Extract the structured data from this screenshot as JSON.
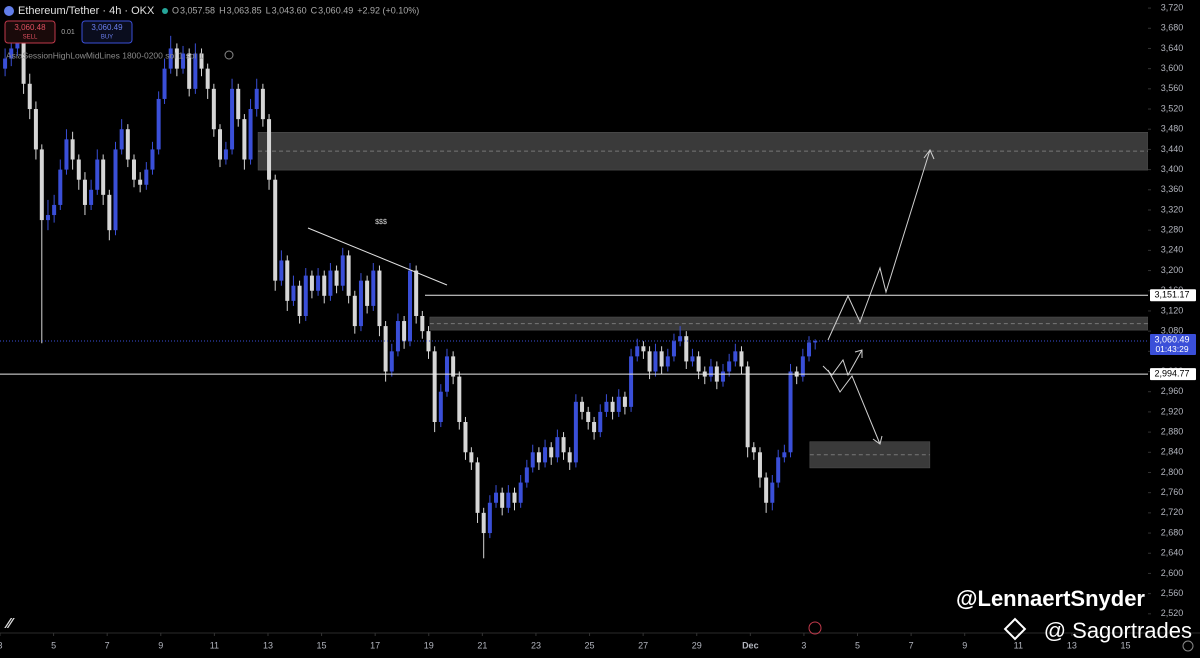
{
  "header": {
    "symbol": "Ethereum/Tether · 4h · OKX",
    "ohlc": [
      {
        "label": "O",
        "value": "3,057.58"
      },
      {
        "label": "H",
        "value": "3,063.85"
      },
      {
        "label": "L",
        "value": "3,043.60"
      },
      {
        "label": "C",
        "value": "3,060.49"
      }
    ],
    "change": "+2.92 (+0.10%)",
    "sell_price": "3,060.48",
    "sell_label": "SELL",
    "quantity": "0.01",
    "buy_price": "3,060.49",
    "buy_label": "BUY",
    "indicator": "AsiaSessionHighLowMidLines 1800-0200 sol 1 sol 1"
  },
  "annotation": "$$$",
  "watermarks": [
    "@LennaertSnyder",
    "@ Sagortrades"
  ],
  "chart_data": {
    "type": "candlestick",
    "title": "Ethereum/Tether · 4h · OKX",
    "up_color": "#3a4fd8",
    "down_color": "#d6d6d6",
    "xlim": [
      0,
      42.84
    ],
    "ylim": [
      2482,
      3736
    ],
    "grid": false,
    "xticks": [
      {
        "value": 0,
        "label": "3"
      },
      {
        "value": 2,
        "label": "5"
      },
      {
        "value": 4,
        "label": "7"
      },
      {
        "value": 6,
        "label": "9"
      },
      {
        "value": 8,
        "label": "11"
      },
      {
        "value": 10,
        "label": "13"
      },
      {
        "value": 12,
        "label": "15"
      },
      {
        "value": 14,
        "label": "17"
      },
      {
        "value": 16,
        "label": "19"
      },
      {
        "value": 18,
        "label": "21"
      },
      {
        "value": 20,
        "label": "23"
      },
      {
        "value": 22,
        "label": "25"
      },
      {
        "value": 24,
        "label": "27"
      },
      {
        "value": 26,
        "label": "29"
      },
      {
        "value": 28,
        "label": "Dec"
      },
      {
        "value": 30,
        "label": "3"
      },
      {
        "value": 32,
        "label": "5"
      },
      {
        "value": 34,
        "label": "7"
      },
      {
        "value": 36,
        "label": "9"
      },
      {
        "value": 38,
        "label": "11"
      },
      {
        "value": 40,
        "label": "13"
      },
      {
        "value": 42,
        "label": "15"
      }
    ],
    "yticks": [
      {
        "value": 3720,
        "label": "3,720"
      },
      {
        "value": 3680,
        "label": "3,680"
      },
      {
        "value": 3640,
        "label": "3,640"
      },
      {
        "value": 3600,
        "label": "3,600"
      },
      {
        "value": 3560,
        "label": "3,560"
      },
      {
        "value": 3520,
        "label": "3,520"
      },
      {
        "value": 3480,
        "label": "3,480"
      },
      {
        "value": 3440,
        "label": "3,440"
      },
      {
        "value": 3400,
        "label": "3,400"
      },
      {
        "value": 3360,
        "label": "3,360"
      },
      {
        "value": 3320,
        "label": "3,320"
      },
      {
        "value": 3280,
        "label": "3,280"
      },
      {
        "value": 3240,
        "label": "3,240"
      },
      {
        "value": 3200,
        "label": "3,200"
      },
      {
        "value": 3160,
        "label": "3,160"
      },
      {
        "value": 3120,
        "label": "3,120"
      },
      {
        "value": 3080,
        "label": "3,080"
      },
      {
        "value": 3040,
        "label": "3,040"
      },
      {
        "value": 3000,
        "label": "3,000"
      },
      {
        "value": 2960,
        "label": "2,960"
      },
      {
        "value": 2920,
        "label": "2,920"
      },
      {
        "value": 2880,
        "label": "2,880"
      },
      {
        "value": 2840,
        "label": "2,840"
      },
      {
        "value": 2800,
        "label": "2,800"
      },
      {
        "value": 2760,
        "label": "2,760"
      },
      {
        "value": 2720,
        "label": "2,720"
      },
      {
        "value": 2680,
        "label": "2,680"
      },
      {
        "value": 2640,
        "label": "2,640"
      },
      {
        "value": 2600,
        "label": "2,600"
      },
      {
        "value": 2560,
        "label": "2,560"
      },
      {
        "value": 2520,
        "label": "2,520"
      }
    ],
    "last_price": {
      "value": 3060.49,
      "label": "3,060.49",
      "countdown": "01:43:29"
    },
    "levels": [
      {
        "value": 3151.17,
        "label": "3,151.17",
        "x0": 15.86
      },
      {
        "value": 2994.77,
        "label": "2,994.77",
        "x0": 0
      }
    ],
    "zones": [
      {
        "low": 3399,
        "high": 3474,
        "x0": 9.63,
        "x1": 42.84
      },
      {
        "low": 3082,
        "high": 3108,
        "x0": 16.04,
        "x1": 42.84
      },
      {
        "low": 2809,
        "high": 2861,
        "x0": 30.22,
        "x1": 34.7
      }
    ],
    "x": [
      0.19,
      0.42,
      0.65,
      0.88,
      1.11,
      1.34,
      1.56,
      1.79,
      2.02,
      2.25,
      2.48,
      2.71,
      2.94,
      3.17,
      3.4,
      3.63,
      3.85,
      4.08,
      4.31,
      4.54,
      4.77,
      5.0,
      5.23,
      5.46,
      5.69,
      5.92,
      6.14,
      6.37,
      6.6,
      6.83,
      7.06,
      7.29,
      7.52,
      7.75,
      7.98,
      8.21,
      8.43,
      8.66,
      8.89,
      9.12,
      9.35,
      9.58,
      9.81,
      10.04,
      10.27,
      10.5,
      10.72,
      10.95,
      11.18,
      11.41,
      11.64,
      11.87,
      12.1,
      12.33,
      12.56,
      12.79,
      13.01,
      13.24,
      13.47,
      13.7,
      13.93,
      14.16,
      14.39,
      14.62,
      14.85,
      15.08,
      15.3,
      15.53,
      15.76,
      15.99,
      16.22,
      16.45,
      16.68,
      16.91,
      17.14,
      17.37,
      17.59,
      17.82,
      18.05,
      18.28,
      18.51,
      18.74,
      18.97,
      19.2,
      19.43,
      19.66,
      19.88,
      20.11,
      20.34,
      20.57,
      20.8,
      21.03,
      21.26,
      21.49,
      21.72,
      21.95,
      22.17,
      22.4,
      22.63,
      22.86,
      23.09,
      23.32,
      23.55,
      23.78,
      24.01,
      24.24,
      24.46,
      24.69,
      24.92,
      25.15,
      25.38,
      25.61,
      25.84,
      26.07,
      26.3,
      26.53,
      26.75,
      26.98,
      27.21,
      27.44,
      27.67,
      27.9,
      28.13,
      28.36,
      28.59,
      28.82,
      29.04,
      29.27,
      29.5,
      29.73,
      29.96,
      30.19,
      30.42
    ],
    "open": [
      3600,
      3620,
      3640,
      3660,
      3570,
      3520,
      3440,
      3300,
      3310,
      3330,
      3400,
      3460,
      3420,
      3380,
      3330,
      3360,
      3420,
      3350,
      3280,
      3440,
      3480,
      3420,
      3380,
      3370,
      3400,
      3440,
      3540,
      3600,
      3640,
      3600,
      3630,
      3560,
      3630,
      3600,
      3560,
      3480,
      3420,
      3440,
      3560,
      3500,
      3420,
      3520,
      3560,
      3500,
      3380,
      3180,
      3220,
      3140,
      3170,
      3110,
      3190,
      3160,
      3190,
      3150,
      3200,
      3170,
      3230,
      3150,
      3090,
      3180,
      3130,
      3200,
      3090,
      3000,
      3040,
      3100,
      3060,
      3200,
      3110,
      3080,
      3040,
      2900,
      2960,
      3030,
      2990,
      2900,
      2840,
      2820,
      2720,
      2680,
      2740,
      2760,
      2730,
      2760,
      2740,
      2780,
      2810,
      2840,
      2820,
      2850,
      2830,
      2870,
      2840,
      2820,
      2940,
      2920,
      2900,
      2880,
      2920,
      2940,
      2920,
      2950,
      2930,
      3030,
      3050,
      3040,
      3000,
      3040,
      3010,
      3030,
      3060,
      3070,
      3020,
      3030,
      3000,
      2990,
      3010,
      2980,
      3000,
      3020,
      3040,
      3010,
      2850,
      2840,
      2790,
      2740,
      2780,
      2830,
      2840,
      3000,
      2990,
      3030,
      3057.58
    ],
    "high": [
      3640,
      3655,
      3680,
      3670,
      3590,
      3535,
      3450,
      3340,
      3350,
      3420,
      3480,
      3475,
      3430,
      3395,
      3380,
      3440,
      3430,
      3360,
      3455,
      3500,
      3490,
      3430,
      3395,
      3415,
      3455,
      3555,
      3620,
      3665,
      3650,
      3645,
      3640,
      3650,
      3640,
      3610,
      3570,
      3490,
      3455,
      3580,
      3570,
      3510,
      3540,
      3580,
      3570,
      3510,
      3390,
      3240,
      3230,
      3190,
      3180,
      3205,
      3200,
      3205,
      3200,
      3215,
      3210,
      3245,
      3240,
      3160,
      3195,
      3190,
      3215,
      3210,
      3100,
      3055,
      3115,
      3110,
      3215,
      3210,
      3120,
      3090,
      3050,
      2975,
      3045,
      3040,
      3000,
      2910,
      2850,
      2830,
      2730,
      2755,
      2775,
      2770,
      2775,
      2770,
      2795,
      2825,
      2855,
      2850,
      2865,
      2860,
      2885,
      2880,
      2850,
      2955,
      2950,
      2930,
      2910,
      2935,
      2955,
      2950,
      2965,
      2960,
      3045,
      3065,
      3060,
      3050,
      3055,
      3050,
      3045,
      3075,
      3090,
      3080,
      3045,
      3040,
      3010,
      3025,
      3020,
      3015,
      3035,
      3055,
      3050,
      3020,
      2860,
      2850,
      2800,
      2795,
      2845,
      2855,
      3015,
      3010,
      3045,
      3070,
      3063.85
    ],
    "low": [
      3585,
      3605,
      3625,
      3550,
      3500,
      3420,
      3056,
      3280,
      3295,
      3320,
      3390,
      3400,
      3360,
      3310,
      3320,
      3350,
      3330,
      3260,
      3270,
      3430,
      3405,
      3365,
      3355,
      3360,
      3390,
      3430,
      3530,
      3590,
      3585,
      3590,
      3545,
      3550,
      3585,
      3540,
      3465,
      3405,
      3410,
      3430,
      3485,
      3400,
      3410,
      3505,
      3485,
      3360,
      3160,
      3170,
      3120,
      3130,
      3095,
      3100,
      3145,
      3150,
      3135,
      3140,
      3155,
      3160,
      3135,
      3075,
      3080,
      3115,
      3120,
      3070,
      2980,
      2990,
      3030,
      3045,
      3050,
      3095,
      3065,
      3025,
      2880,
      2890,
      2950,
      2975,
      2885,
      2825,
      2805,
      2700,
      2630,
      2670,
      2730,
      2715,
      2720,
      2725,
      2730,
      2770,
      2800,
      2805,
      2810,
      2815,
      2820,
      2825,
      2805,
      2810,
      2905,
      2885,
      2865,
      2870,
      2910,
      2905,
      2910,
      2915,
      2920,
      3020,
      3025,
      2985,
      2990,
      2995,
      3000,
      3020,
      3050,
      3005,
      3010,
      2985,
      2975,
      2980,
      2965,
      2970,
      2990,
      3010,
      2995,
      2830,
      2825,
      2770,
      2720,
      2725,
      2770,
      2820,
      2830,
      2975,
      2980,
      3020,
      3043.6
    ],
    "close": [
      3620,
      3640,
      3660,
      3570,
      3520,
      3440,
      3300,
      3310,
      3330,
      3400,
      3460,
      3420,
      3380,
      3330,
      3360,
      3420,
      3350,
      3280,
      3440,
      3480,
      3420,
      3380,
      3370,
      3400,
      3440,
      3540,
      3600,
      3640,
      3600,
      3630,
      3560,
      3630,
      3600,
      3560,
      3480,
      3420,
      3440,
      3560,
      3500,
      3420,
      3520,
      3560,
      3500,
      3380,
      3180,
      3220,
      3140,
      3170,
      3110,
      3190,
      3160,
      3190,
      3150,
      3200,
      3170,
      3230,
      3150,
      3090,
      3180,
      3130,
      3200,
      3090,
      3000,
      3040,
      3100,
      3060,
      3200,
      3110,
      3080,
      3040,
      2900,
      2960,
      3030,
      2990,
      2900,
      2840,
      2820,
      2720,
      2680,
      2740,
      2760,
      2730,
      2760,
      2740,
      2780,
      2810,
      2840,
      2820,
      2850,
      2830,
      2870,
      2840,
      2820,
      2940,
      2920,
      2900,
      2880,
      2920,
      2940,
      2920,
      2950,
      2930,
      3030,
      3050,
      3040,
      3000,
      3040,
      3010,
      3030,
      3060,
      3070,
      3020,
      3030,
      3000,
      2990,
      3010,
      2980,
      3000,
      3020,
      3040,
      3010,
      2850,
      2840,
      2790,
      2740,
      2780,
      2830,
      2840,
      3000,
      2990,
      3030,
      3057.58,
      3060.49
    ]
  }
}
